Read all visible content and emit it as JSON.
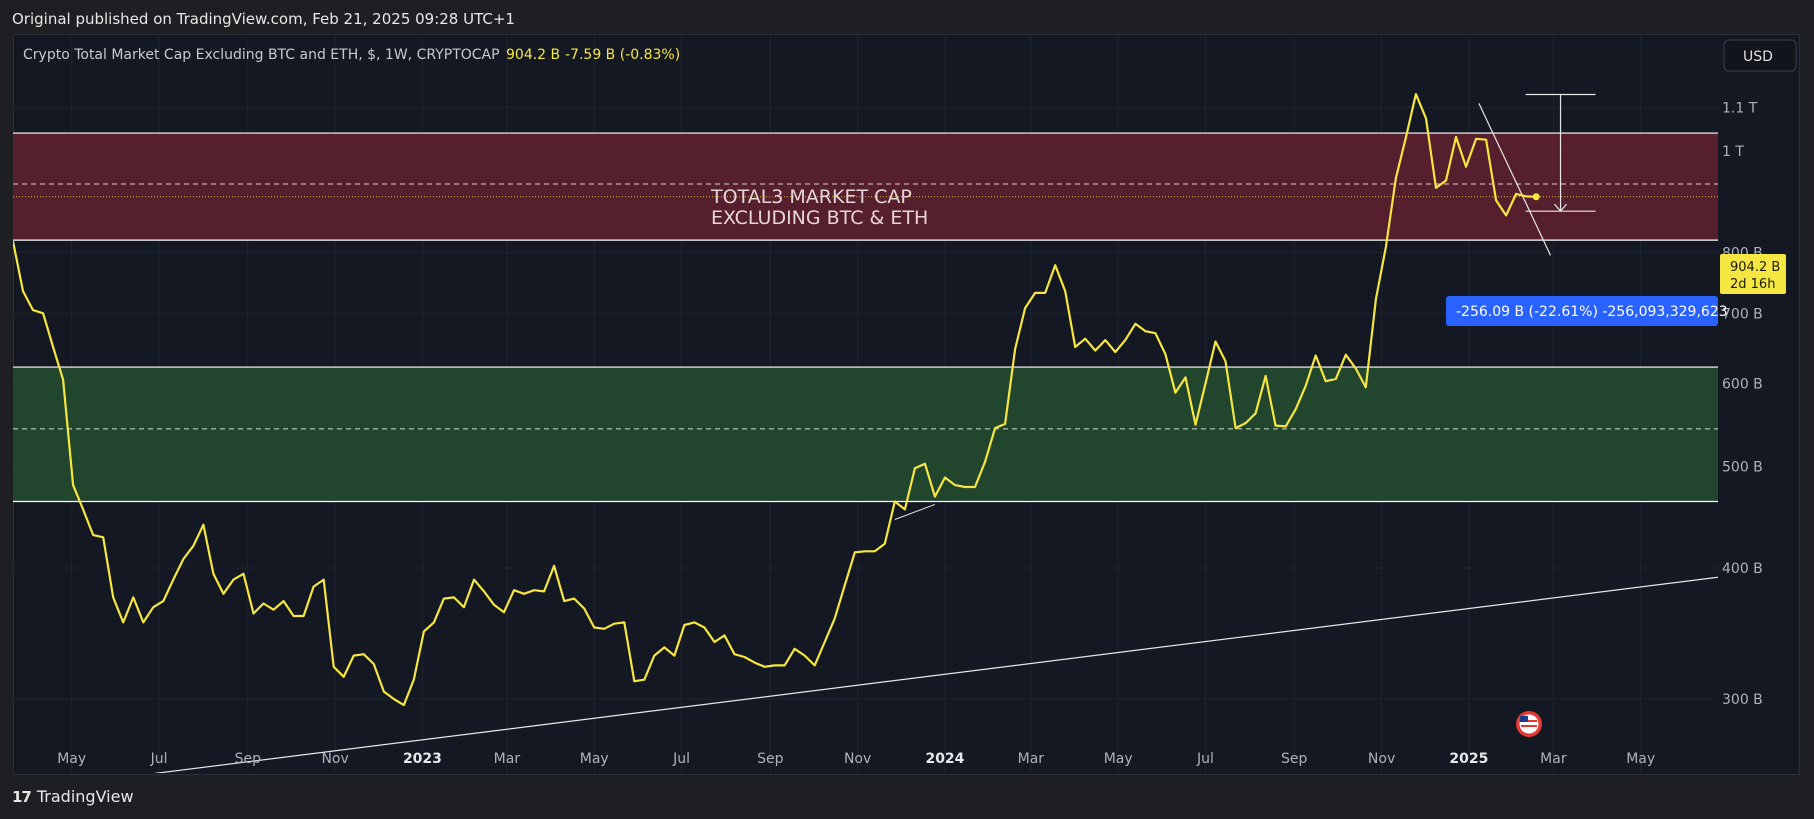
{
  "header": {
    "published_text": "Original published on TradingView.com, Feb 21, 2025 09:28 UTC+1"
  },
  "legend": {
    "symbol_text": "Crypto Total Market Cap Excluding BTC and ETH, $, 1W, CRYPTOCAP",
    "last_value": "904.2 B",
    "change_text": "-7.59 B (-0.83%)"
  },
  "currency_button": "USD",
  "annotation": {
    "line1": "TOTAL3 MARKET CAP",
    "line2": "EXCLUDING BTC & ETH"
  },
  "price_label": {
    "value": "904.2 B",
    "countdown": "2d 16h"
  },
  "measure_label": "-256.09 B (-22.61%) -256,093,329,623",
  "footer": {
    "brand": "TradingView",
    "logo_mark": "17"
  },
  "colors": {
    "series": "#f5e642",
    "resistance_zone": "#5c212f",
    "support_zone": "#244a30",
    "measure_badge": "#2962ff",
    "price_badge": "#f5e642"
  },
  "chart_data": {
    "type": "line",
    "series": [
      {
        "name": "Crypto Total Market Cap Excluding BTC and ETH",
        "unit": "B USD",
        "points": [
          [
            "2022-03-21",
            820
          ],
          [
            "2022-03-28",
            735
          ],
          [
            "2022-04-04",
            705
          ],
          [
            "2022-04-11",
            700
          ],
          [
            "2022-04-18",
            650
          ],
          [
            "2022-04-25",
            605
          ],
          [
            "2022-05-02",
            480
          ],
          [
            "2022-05-09",
            455
          ],
          [
            "2022-05-16",
            430
          ],
          [
            "2022-05-23",
            428
          ],
          [
            "2022-05-30",
            375
          ],
          [
            "2022-06-06",
            355
          ],
          [
            "2022-06-13",
            375
          ],
          [
            "2022-06-20",
            355
          ],
          [
            "2022-06-27",
            367
          ],
          [
            "2022-07-04",
            372
          ],
          [
            "2022-07-11",
            390
          ],
          [
            "2022-07-18",
            408
          ],
          [
            "2022-07-25",
            420
          ],
          [
            "2022-08-01",
            440
          ],
          [
            "2022-08-08",
            395
          ],
          [
            "2022-08-15",
            378
          ],
          [
            "2022-08-22",
            390
          ],
          [
            "2022-08-29",
            395
          ],
          [
            "2022-09-05",
            362
          ],
          [
            "2022-09-12",
            370
          ],
          [
            "2022-09-19",
            365
          ],
          [
            "2022-09-26",
            372
          ],
          [
            "2022-10-03",
            360
          ],
          [
            "2022-10-10",
            360
          ],
          [
            "2022-10-17",
            384
          ],
          [
            "2022-10-24",
            390
          ],
          [
            "2022-10-31",
            322
          ],
          [
            "2022-11-07",
            315
          ],
          [
            "2022-11-14",
            330
          ],
          [
            "2022-11-21",
            331
          ],
          [
            "2022-11-28",
            324
          ],
          [
            "2022-12-05",
            305
          ],
          [
            "2022-12-12",
            300
          ],
          [
            "2022-12-19",
            296
          ],
          [
            "2022-12-26",
            313
          ],
          [
            "2023-01-02",
            348
          ],
          [
            "2023-01-09",
            355
          ],
          [
            "2023-01-16",
            374
          ],
          [
            "2023-01-23",
            375
          ],
          [
            "2023-01-30",
            367
          ],
          [
            "2023-02-06",
            390
          ],
          [
            "2023-02-13",
            380
          ],
          [
            "2023-02-20",
            369
          ],
          [
            "2023-02-27",
            363
          ],
          [
            "2023-03-06",
            381
          ],
          [
            "2023-03-13",
            378
          ],
          [
            "2023-03-20",
            381
          ],
          [
            "2023-03-27",
            380
          ],
          [
            "2023-04-03",
            402
          ],
          [
            "2023-04-10",
            372
          ],
          [
            "2023-04-17",
            374
          ],
          [
            "2023-04-24",
            366
          ],
          [
            "2023-05-01",
            351
          ],
          [
            "2023-05-08",
            350
          ],
          [
            "2023-05-15",
            354
          ],
          [
            "2023-05-22",
            355
          ],
          [
            "2023-05-29",
            312
          ],
          [
            "2023-06-05",
            313
          ],
          [
            "2023-06-12",
            330
          ],
          [
            "2023-06-19",
            336
          ],
          [
            "2023-06-26",
            330
          ],
          [
            "2023-07-03",
            353
          ],
          [
            "2023-07-10",
            355
          ],
          [
            "2023-07-17",
            351
          ],
          [
            "2023-07-24",
            340
          ],
          [
            "2023-07-31",
            345
          ],
          [
            "2023-08-07",
            331
          ],
          [
            "2023-08-14",
            329
          ],
          [
            "2023-08-21",
            325
          ],
          [
            "2023-08-28",
            322
          ],
          [
            "2023-09-04",
            323
          ],
          [
            "2023-09-11",
            323
          ],
          [
            "2023-09-18",
            335
          ],
          [
            "2023-09-25",
            330
          ],
          [
            "2023-10-02",
            323
          ],
          [
            "2023-10-09",
            340
          ],
          [
            "2023-10-16",
            358
          ],
          [
            "2023-10-23",
            385
          ],
          [
            "2023-10-30",
            414
          ],
          [
            "2023-11-06",
            415
          ],
          [
            "2023-11-13",
            415
          ],
          [
            "2023-11-20",
            422
          ],
          [
            "2023-11-27",
            463
          ],
          [
            "2023-12-04",
            455
          ],
          [
            "2023-12-11",
            498
          ],
          [
            "2023-12-18",
            503
          ],
          [
            "2023-12-25",
            468
          ],
          [
            "2024-01-01",
            488
          ],
          [
            "2024-01-08",
            480
          ],
          [
            "2024-01-15",
            478
          ],
          [
            "2024-01-22",
            478
          ],
          [
            "2024-01-29",
            505
          ],
          [
            "2024-02-05",
            544
          ],
          [
            "2024-02-12",
            549
          ],
          [
            "2024-02-19",
            647
          ],
          [
            "2024-02-26",
            708
          ],
          [
            "2024-03-04",
            732
          ],
          [
            "2024-03-11",
            732
          ],
          [
            "2024-03-18",
            778
          ],
          [
            "2024-03-25",
            735
          ],
          [
            "2024-04-01",
            650
          ],
          [
            "2024-04-08",
            662
          ],
          [
            "2024-04-15",
            645
          ],
          [
            "2024-04-22",
            660
          ],
          [
            "2024-04-29",
            643
          ],
          [
            "2024-05-06",
            660
          ],
          [
            "2024-05-13",
            684
          ],
          [
            "2024-05-20",
            673
          ],
          [
            "2024-05-27",
            670
          ],
          [
            "2024-06-03",
            640
          ],
          [
            "2024-06-10",
            588
          ],
          [
            "2024-06-17",
            608
          ],
          [
            "2024-06-24",
            548
          ],
          [
            "2024-07-01",
            600
          ],
          [
            "2024-07-08",
            658
          ],
          [
            "2024-07-15",
            630
          ],
          [
            "2024-07-22",
            544
          ],
          [
            "2024-07-29",
            550
          ],
          [
            "2024-08-05",
            562
          ],
          [
            "2024-08-12",
            610
          ],
          [
            "2024-08-19",
            547
          ],
          [
            "2024-08-26",
            546
          ],
          [
            "2024-09-02",
            567
          ],
          [
            "2024-09-09",
            597
          ],
          [
            "2024-09-16",
            638
          ],
          [
            "2024-09-23",
            603
          ],
          [
            "2024-09-30",
            606
          ],
          [
            "2024-10-07",
            639
          ],
          [
            "2024-10-14",
            620
          ],
          [
            "2024-10-21",
            595
          ],
          [
            "2024-10-28",
            722
          ],
          [
            "2024-11-04",
            810
          ],
          [
            "2024-11-11",
            942
          ],
          [
            "2024-11-18",
            1030
          ],
          [
            "2024-11-25",
            1133
          ],
          [
            "2024-12-02",
            1074
          ],
          [
            "2024-12-09",
            922
          ],
          [
            "2024-12-16",
            937
          ],
          [
            "2024-12-23",
            1031
          ],
          [
            "2024-12-30",
            966
          ],
          [
            "2025-01-06",
            1027
          ],
          [
            "2025-01-13",
            1025
          ],
          [
            "2025-01-20",
            897
          ],
          [
            "2025-01-27",
            868
          ],
          [
            "2025-02-03",
            910
          ],
          [
            "2025-02-10",
            905
          ],
          [
            "2025-02-17",
            904.2
          ]
        ]
      }
    ],
    "x_tick_labels": [
      "May",
      "Jul",
      "Sep",
      "Nov",
      "2023",
      "Mar",
      "May",
      "Jul",
      "Sep",
      "Nov",
      "2024",
      "Mar",
      "May",
      "Jul",
      "Sep",
      "Nov",
      "2025",
      "Mar",
      "May"
    ],
    "y_tick_labels": [
      "300 B",
      "400 B",
      "500 B",
      "600 B",
      "700 B",
      "800 B",
      "1 T",
      "1.1 T"
    ],
    "y_scale": "log",
    "ylim_b": [
      255,
      1290
    ],
    "xlim": [
      "2022-03-21",
      "2025-06-24"
    ],
    "grid": true,
    "zones": [
      {
        "kind": "resistance",
        "low_b": 822,
        "high_b": 1040,
        "mid_b": 930
      },
      {
        "kind": "support",
        "low_b": 463,
        "high_b": 622,
        "mid_b": 543
      }
    ],
    "trendline": {
      "from": [
        "2022-03-21",
        245
      ],
      "to": [
        "2025-06-24",
        392
      ]
    },
    "descending_line": {
      "from": [
        "2025-01-08",
        1110
      ],
      "to": [
        "2025-02-27",
        795
      ]
    },
    "small_segment": {
      "from": [
        "2023-11-27",
        445
      ],
      "to": [
        "2023-12-25",
        460
      ]
    },
    "measure": {
      "date": "2025-03-06",
      "from_b": 1132,
      "to_b": 876
    }
  }
}
